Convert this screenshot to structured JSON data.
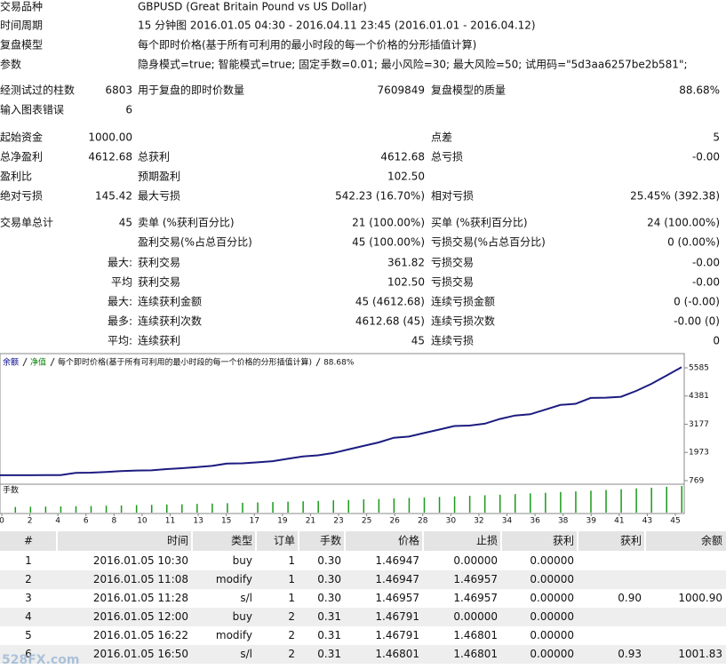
{
  "summary": {
    "rows": [
      [
        "交易品种",
        null,
        "GBPUSD (Great Britain Pound vs US Dollar)",
        null,
        null,
        null
      ],
      [
        "时间周期",
        null,
        "15 分钟图 2016.01.05 04:30 - 2016.04.11 23:45 (2016.01.01 - 2016.04.12)",
        null,
        null,
        null
      ],
      [
        "复盘模型",
        null,
        "每个即时价格(基于所有可利用的最小时段的每一个价格的分形插值计算)",
        null,
        null,
        null
      ],
      [
        "参数",
        null,
        "隐身模式=true; 智能模式=true; 固定手数=0.01; 最小风险=30; 最大风险=50; 试用码=\"5d3aa6257be2b581\";",
        null,
        null,
        null
      ],
      [
        "经测试过的柱数",
        "6803",
        "用于复盘的即时价数量",
        "7609849",
        "复盘模型的质量",
        "88.68%"
      ],
      [
        "输入图表错误",
        "6",
        null,
        null,
        null,
        null
      ],
      [
        "起始资金",
        "1000.00",
        null,
        null,
        "点差",
        "5"
      ],
      [
        "总净盈利",
        "4612.68",
        "总获利",
        "4612.68",
        "总亏损",
        "-0.00"
      ],
      [
        "盈利比",
        null,
        "预期盈利",
        "102.50",
        null,
        null
      ],
      [
        "绝对亏损",
        "145.42",
        "最大亏损",
        "542.23 (16.70%)",
        "相对亏损",
        "25.45% (392.38)"
      ],
      [
        "交易单总计",
        "45",
        "卖单 (%获利百分比)",
        "21 (100.00%)",
        "买单 (%获利百分比)",
        "24 (100.00%)"
      ],
      [
        null,
        null,
        "盈利交易(%占总百分比)",
        "45 (100.00%)",
        "亏损交易(%占总百分比)",
        "0 (0.00%)"
      ],
      [
        null,
        "最大:",
        "获利交易",
        "361.82",
        "亏损交易",
        "-0.00"
      ],
      [
        null,
        "平均",
        "获利交易",
        "102.50",
        "亏损交易",
        "-0.00"
      ],
      [
        null,
        "最大:",
        "连续获利金额",
        "45 (4612.68)",
        "连续亏损金额",
        "0 (-0.00)"
      ],
      [
        null,
        "最多:",
        "连续获利次数",
        "4612.68 (45)",
        "连续亏损次数",
        "-0.00 (0)"
      ],
      [
        null,
        "平均:",
        "连续获利",
        "45",
        "连续亏损",
        "0"
      ]
    ]
  },
  "chart_data": {
    "type": "line",
    "legend": [
      {
        "text": "余额",
        "color": "#00008b"
      },
      {
        "text": "净值",
        "color": "#008000"
      },
      {
        "text": "每个即时价格(基于所有可利用的最小时段的每一个价格的分形插值计算)"
      },
      {
        "text": "88.68%"
      }
    ],
    "series": [
      {
        "name": "余额",
        "color": "#1c1c80",
        "values": [
          1000,
          1000,
          1001,
          1002,
          1004,
          1100,
          1110,
          1140,
          1180,
          1200,
          1210,
          1260,
          1300,
          1350,
          1400,
          1500,
          1510,
          1550,
          1600,
          1700,
          1800,
          1850,
          1950,
          2100,
          2250,
          2400,
          2600,
          2650,
          2800,
          2950,
          3100,
          3120,
          3200,
          3400,
          3550,
          3600,
          3800,
          4000,
          4050,
          4300,
          4310,
          4350,
          4600,
          4900,
          5250,
          5612.68
        ]
      }
    ],
    "ylim": [
      617,
      6116
    ],
    "yticks": [
      769,
      1973,
      3177,
      4381,
      5585
    ],
    "xticks": [
      0,
      2,
      4,
      6,
      8,
      10,
      11,
      13,
      15,
      17,
      19,
      21,
      23,
      25,
      26,
      28,
      30,
      32,
      34,
      36,
      38,
      39,
      41,
      43,
      45
    ],
    "volume": {
      "name": "手数",
      "color": "#1a9a1a",
      "values": [
        0.3,
        0.31,
        0.32,
        0.33,
        0.34,
        0.35,
        0.37,
        0.38,
        0.4,
        0.41,
        0.43,
        0.44,
        0.46,
        0.48,
        0.5,
        0.52,
        0.54,
        0.56,
        0.58,
        0.6,
        0.62,
        0.65,
        0.67,
        0.7,
        0.72,
        0.75,
        0.78,
        0.8,
        0.83,
        0.86,
        0.89,
        0.92,
        0.95,
        0.98,
        1.02,
        1.05,
        1.09,
        1.12,
        1.16,
        1.2,
        1.24,
        1.28,
        1.32,
        1.37,
        1.41
      ]
    }
  },
  "table": {
    "columns": [
      "#",
      "时间",
      "类型",
      "订单",
      "手数",
      "价格",
      "止损",
      "获利",
      "获利",
      "余额"
    ],
    "rows": [
      [
        "1",
        "2016.01.05 10:30",
        "buy",
        "1",
        "0.30",
        "1.46947",
        "0.00000",
        "0.00000",
        null,
        null
      ],
      [
        "2",
        "2016.01.05 11:08",
        "modify",
        "1",
        "0.30",
        "1.46947",
        "1.46957",
        "0.00000",
        null,
        null
      ],
      [
        "3",
        "2016.01.05 11:28",
        "s/l",
        "1",
        "0.30",
        "1.46957",
        "1.46957",
        "0.00000",
        "0.90",
        "1000.90"
      ],
      [
        "4",
        "2016.01.05 12:00",
        "buy",
        "2",
        "0.31",
        "1.46791",
        "0.00000",
        "0.00000",
        null,
        null
      ],
      [
        "5",
        "2016.01.05 16:22",
        "modify",
        "2",
        "0.31",
        "1.46791",
        "1.46801",
        "0.00000",
        null,
        null
      ],
      [
        "6",
        "2016.01.05 16:50",
        "s/l",
        "2",
        "0.31",
        "1.46801",
        "1.46801",
        "0.00000",
        "0.93",
        "1001.83"
      ]
    ]
  },
  "watermark": "528FX.com"
}
